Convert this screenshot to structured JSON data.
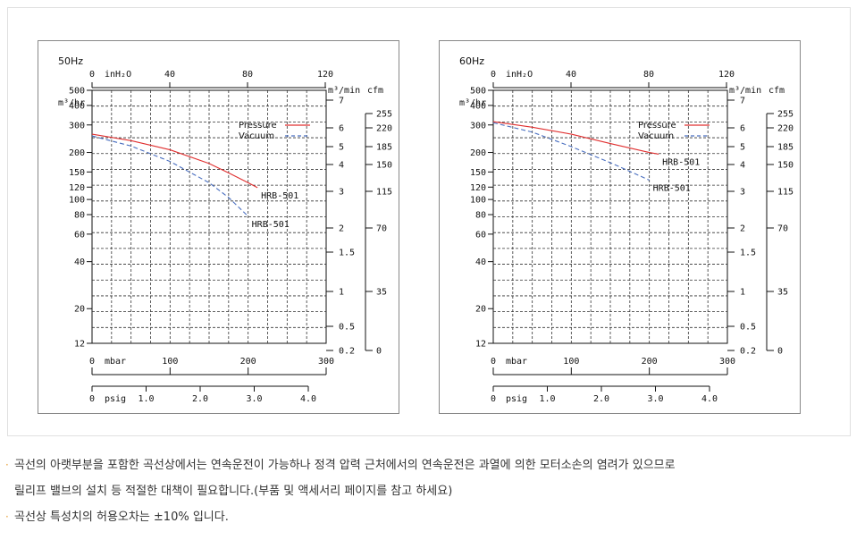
{
  "charts_meta": {
    "top_axis_label": "inH₂O",
    "top_ticks": [
      "0",
      "40",
      "80",
      "120"
    ],
    "left_unit": "m³/hr",
    "left_ticks": [
      "500",
      "400",
      "300",
      "200",
      "150",
      "120",
      "100",
      "80",
      "60",
      "40",
      "20",
      "12"
    ],
    "right_unit1": "m³/min",
    "right_ticks1": [
      "7",
      "6",
      "5",
      "4",
      "3",
      "2",
      "1.5",
      "1",
      "0.5",
      "0.2"
    ],
    "right_unit2": "cfm",
    "right_ticks2": [
      "255",
      "220",
      "185",
      "150",
      "115",
      "70",
      "35",
      "0"
    ],
    "mbar_label": "mbar",
    "mbar_ticks": [
      "0",
      "100",
      "200",
      "300"
    ],
    "psig_label": "psig",
    "psig_ticks": [
      "0",
      "1.0",
      "2.0",
      "3.0",
      "4.0"
    ],
    "legend_pressure": "Pressure",
    "legend_vacuum": "Vacuum",
    "pressure_color": "#e03030",
    "vacuum_color": "#4a6fc0"
  },
  "chart_data": [
    {
      "type": "line",
      "title": "50Hz",
      "xlabel": "mbar",
      "ylabel": "m³/hr",
      "xlim": [
        0,
        300
      ],
      "ylim": [
        12,
        500
      ],
      "series": [
        {
          "name": "Pressure",
          "label": "HRB-501",
          "x": [
            0,
            50,
            100,
            150,
            175,
            200,
            212
          ],
          "y": [
            262,
            238,
            208,
            170,
            148,
            128,
            119
          ]
        },
        {
          "name": "Vacuum",
          "label": "HRB-501",
          "x": [
            0,
            50,
            100,
            150,
            175,
            200
          ],
          "y": [
            255,
            220,
            175,
            128,
            103,
            78
          ]
        }
      ]
    },
    {
      "type": "line",
      "title": "60Hz",
      "xlabel": "mbar",
      "ylabel": "m³/hr",
      "xlim": [
        0,
        300
      ],
      "ylim": [
        12,
        500
      ],
      "series": [
        {
          "name": "Pressure",
          "label": "HRB-501",
          "x": [
            0,
            50,
            100,
            150,
            200,
            212
          ],
          "y": [
            315,
            290,
            262,
            228,
            200,
            195
          ]
        },
        {
          "name": "Vacuum",
          "label": "HRB-501",
          "x": [
            0,
            50,
            100,
            150,
            200
          ],
          "y": [
            310,
            270,
            218,
            172,
            133
          ]
        }
      ]
    }
  ],
  "notes": [
    "곡선의 아랫부분을 포함한 곡선상에서는 연속운전이 가능하나 정격 압력 근처에서의 연속운전은 과열에 의한 모터소손의 염려가 있으므로",
    "릴리프 밸브의 설치 등 적절한 대책이 필요합니다.(부품 및 액세서리 페이지를 참고 하세요)",
    "곡선상 특성치의 허용오차는 ±10% 입니다."
  ]
}
